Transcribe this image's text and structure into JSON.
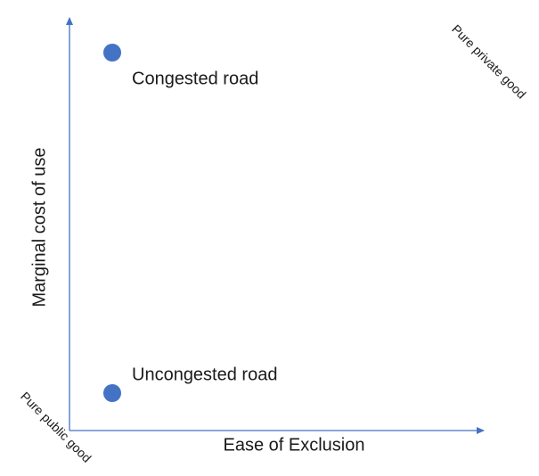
{
  "axes": {
    "x_label": "Ease of Exclusion",
    "y_label": "Marginal cost of use"
  },
  "corners": {
    "top_right": "Pure private good",
    "bottom_left": "Pure public good"
  },
  "points": [
    {
      "label": "Congested road"
    },
    {
      "label": "Uncongested road"
    }
  ]
}
